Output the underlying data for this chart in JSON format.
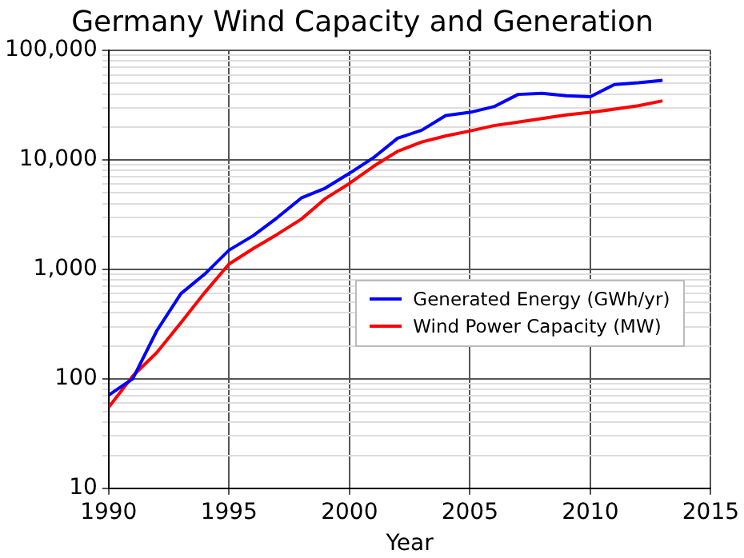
{
  "chart_data": {
    "type": "line",
    "title": "Germany Wind Capacity and Generation",
    "xlabel": "Year",
    "x": [
      1990,
      1991,
      1992,
      1993,
      1994,
      1995,
      1996,
      1997,
      1998,
      1999,
      2000,
      2001,
      2002,
      2003,
      2004,
      2005,
      2006,
      2007,
      2008,
      2009,
      2010,
      2011,
      2012,
      2013
    ],
    "series": [
      {
        "name": "Generated Energy (GWh/yr)",
        "color": "#0000ff",
        "values": [
          71,
          100,
          275,
          600,
          910,
          1500,
          2030,
          2970,
          4490,
          5530,
          7550,
          10500,
          15800,
          18700,
          25500,
          27200,
          30700,
          39700,
          40600,
          38600,
          37800,
          48900,
          50700,
          53400
        ]
      },
      {
        "name": "Wind Power Capacity (MW)",
        "color": "#ff0000",
        "values": [
          55,
          106,
          174,
          326,
          618,
          1120,
          1550,
          2090,
          2880,
          4440,
          6100,
          8750,
          12000,
          14600,
          16600,
          18400,
          20600,
          22200,
          23900,
          25800,
          27200,
          29100,
          31300,
          34700
        ]
      }
    ],
    "xlim": [
      1990,
      2015
    ],
    "xticks": [
      1990,
      1995,
      2000,
      2005,
      2010,
      2015
    ],
    "log": "y",
    "ylim": [
      10,
      100000
    ],
    "yticks": [
      {
        "value": 10,
        "label": "10"
      },
      {
        "value": 20,
        "label": null
      },
      {
        "value": 30,
        "label": null
      },
      {
        "value": 40,
        "label": null
      },
      {
        "value": 50,
        "label": null
      },
      {
        "value": 60,
        "label": null
      },
      {
        "value": 70,
        "label": null
      },
      {
        "value": 80,
        "label": null
      },
      {
        "value": 90,
        "label": null
      },
      {
        "value": 100,
        "label": "100"
      },
      {
        "value": 200,
        "label": null
      },
      {
        "value": 300,
        "label": null
      },
      {
        "value": 400,
        "label": null
      },
      {
        "value": 500,
        "label": null
      },
      {
        "value": 600,
        "label": null
      },
      {
        "value": 700,
        "label": null
      },
      {
        "value": 800,
        "label": null
      },
      {
        "value": 900,
        "label": null
      },
      {
        "value": 1000,
        "label": "1,000"
      },
      {
        "value": 2000,
        "label": null
      },
      {
        "value": 3000,
        "label": null
      },
      {
        "value": 4000,
        "label": null
      },
      {
        "value": 5000,
        "label": null
      },
      {
        "value": 6000,
        "label": null
      },
      {
        "value": 7000,
        "label": null
      },
      {
        "value": 8000,
        "label": null
      },
      {
        "value": 9000,
        "label": null
      },
      {
        "value": 10000,
        "label": "10,000"
      },
      {
        "value": 20000,
        "label": null
      },
      {
        "value": 30000,
        "label": null
      },
      {
        "value": 40000,
        "label": null
      },
      {
        "value": 50000,
        "label": null
      },
      {
        "value": 60000,
        "label": null
      },
      {
        "value": 70000,
        "label": null
      },
      {
        "value": 80000,
        "label": null
      },
      {
        "value": 90000,
        "label": null
      },
      {
        "value": 100000,
        "label": "100,000"
      }
    ],
    "grid": true,
    "legend": "right",
    "marker": "none",
    "line_style": "solid"
  }
}
